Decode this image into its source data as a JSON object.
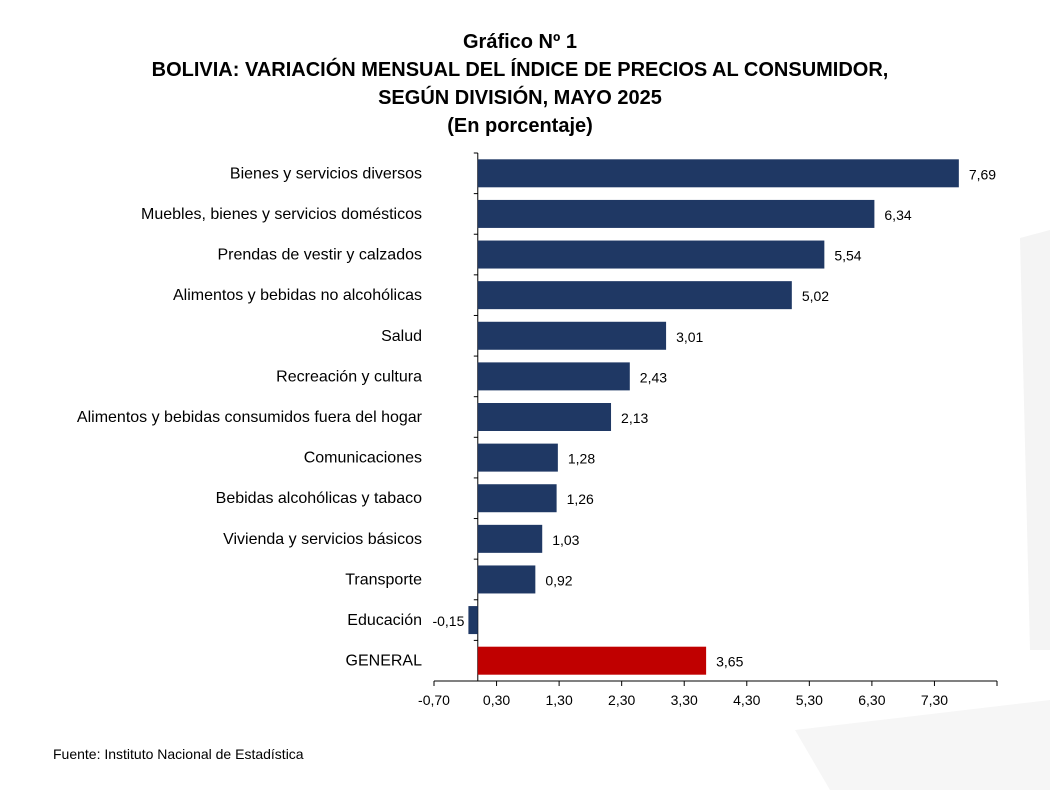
{
  "header": {
    "line1": "Gráfico Nº 1",
    "line2": "BOLIVIA: VARIACIÓN MENSUAL DEL ÍNDICE DE PRECIOS AL CONSUMIDOR,",
    "line3": "SEGÚN DIVISIÓN, MAYO 2025",
    "line4": "(En porcentaje)"
  },
  "footer": {
    "source": "Fuente: Instituto Nacional de Estadística"
  },
  "colors": {
    "bar": "#1f3864",
    "highlight": "#c00000",
    "axis": "#000000"
  },
  "chart_data": {
    "type": "bar",
    "orientation": "horizontal",
    "title": "BOLIVIA: VARIACIÓN MENSUAL DEL ÍNDICE DE PRECIOS AL CONSUMIDOR, SEGÚN DIVISIÓN, MAYO 2025",
    "categories": [
      "Bienes y servicios diversos",
      "Muebles, bienes y servicios domésticos",
      "Prendas de vestir y calzados",
      "Alimentos y bebidas no alcohólicas",
      "Salud",
      "Recreación y cultura",
      "Alimentos y bebidas consumidos fuera del hogar",
      "Comunicaciones",
      "Bebidas alcohólicas y tabaco",
      "Vivienda y servicios básicos",
      "Transporte",
      "Educación",
      "GENERAL"
    ],
    "values": [
      7.69,
      6.34,
      5.54,
      5.02,
      3.01,
      2.43,
      2.13,
      1.28,
      1.26,
      1.03,
      0.92,
      -0.15,
      3.65
    ],
    "value_labels": [
      "7,69",
      "6,34",
      "5,54",
      "5,02",
      "3,01",
      "2,43",
      "2,13",
      "1,28",
      "1,26",
      "1,03",
      "0,92",
      "-0,15",
      "3,65"
    ],
    "highlight_category": "GENERAL",
    "xlim": [
      -0.7,
      8.3
    ],
    "xticks": [
      -0.7,
      0.3,
      1.3,
      2.3,
      3.3,
      4.3,
      5.3,
      6.3,
      7.3
    ],
    "xtick_labels": [
      "-0,70",
      "0,30",
      "1,30",
      "2,30",
      "3,30",
      "4,30",
      "5,30",
      "6,30",
      "7,30"
    ],
    "grid": false,
    "legend": "none"
  }
}
